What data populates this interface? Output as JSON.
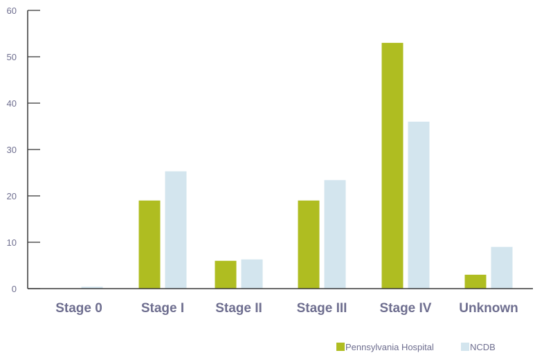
{
  "chart_data": {
    "type": "bar",
    "categories": [
      "Stage 0",
      "Stage I",
      "Stage II",
      "Stage III",
      "Stage IV",
      "Unknown"
    ],
    "series": [
      {
        "name": "Pennsylvania Hospital",
        "color": "#afbd21",
        "values": [
          0,
          19,
          6,
          19,
          53,
          3
        ]
      },
      {
        "name": "NCDB",
        "color": "#d3e5ee",
        "values": [
          0.4,
          25.3,
          6.3,
          23.4,
          36,
          9
        ]
      }
    ],
    "ylim": [
      0,
      60
    ],
    "yticks": [
      "0",
      "10",
      "20",
      "30",
      "40",
      "50",
      "60"
    ],
    "title": "",
    "xlabel": "",
    "ylabel": "",
    "legend_position": "bottom-right",
    "axis_color": "#333333"
  }
}
